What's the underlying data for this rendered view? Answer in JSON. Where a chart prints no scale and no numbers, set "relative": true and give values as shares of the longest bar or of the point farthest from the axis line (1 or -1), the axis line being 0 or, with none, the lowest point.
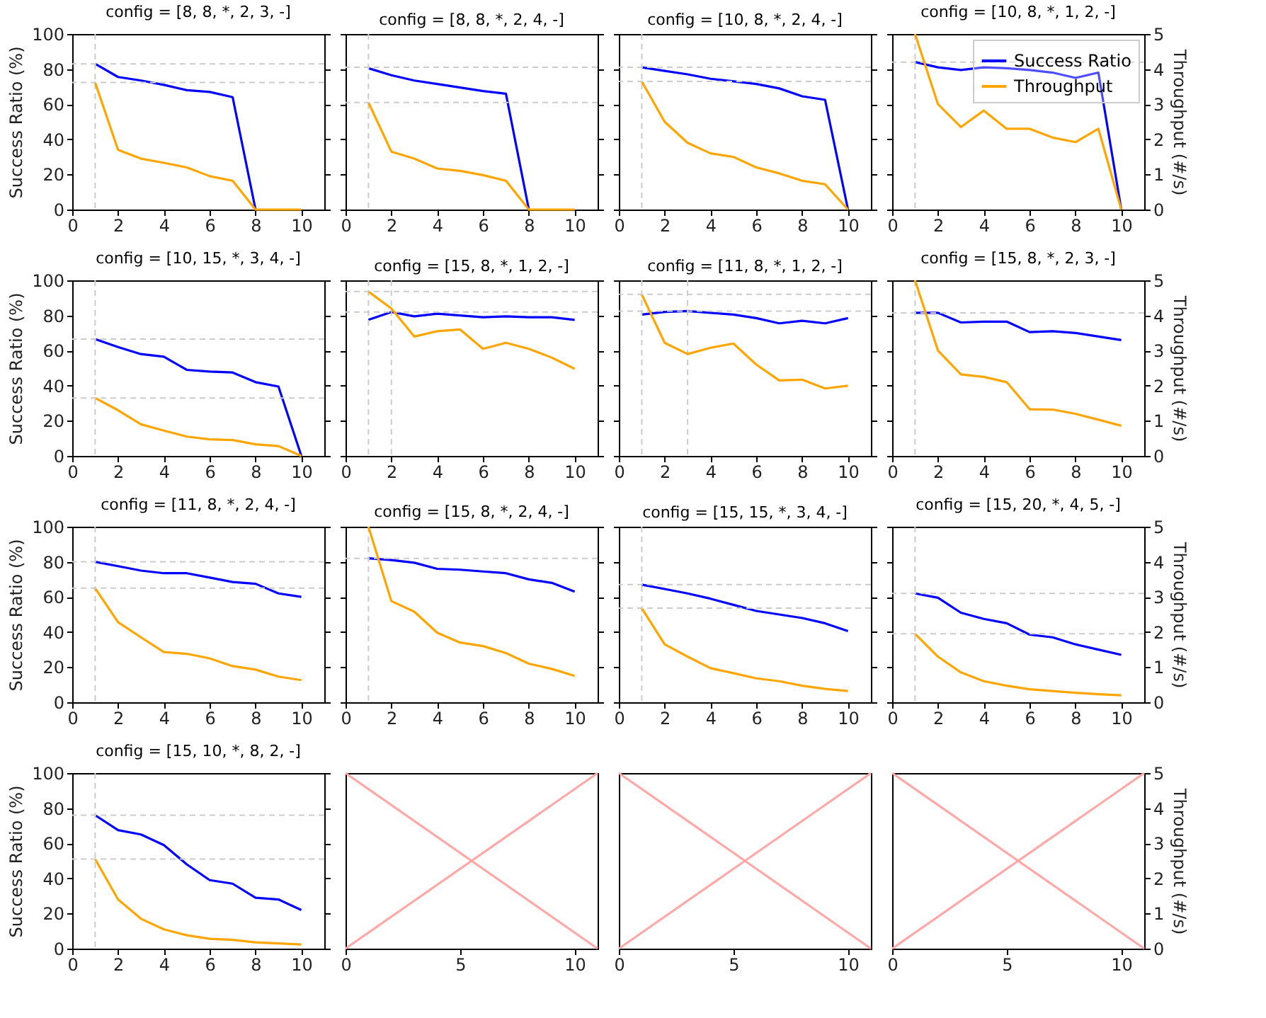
{
  "chart_data": [
    {
      "type": "line",
      "title": "config = [8, 8, *, 2, 3, -]",
      "ylabel": "Success Ratio (%)",
      "x": [
        1,
        2,
        3,
        4,
        5,
        6,
        7,
        8,
        9,
        10
      ],
      "xlim": [
        0,
        11
      ],
      "xticks": [
        0,
        2,
        4,
        6,
        8,
        10
      ],
      "ylim": [
        0,
        100
      ],
      "yticks": [
        0,
        20,
        40,
        60,
        80,
        100
      ],
      "y2lim": [
        0,
        5
      ],
      "series": [
        {
          "color": "#0000ff",
          "values": [
            83,
            75.5,
            73.5,
            71,
            68,
            67,
            64,
            0,
            null,
            null
          ]
        },
        {
          "color": "#ffa500",
          "axis": "y2",
          "values": [
            3.62,
            1.7,
            1.45,
            1.33,
            1.2,
            0.95,
            0.82,
            0,
            0,
            0
          ]
        }
      ],
      "ref_lines": [
        {
          "axis": "x",
          "value": 1,
          "color": "#cccccc",
          "line_style": "dashed"
        },
        {
          "axis": "y",
          "value": 83,
          "color": "#cccccc",
          "line_style": "dashed"
        },
        {
          "axis": "y2",
          "value": 3.62,
          "color": "#cccccc",
          "line_style": "dashed"
        }
      ]
    },
    {
      "type": "line",
      "title": "config = [8, 8, *, 2, 4, -]",
      "x": [
        1,
        2,
        3,
        4,
        5,
        6,
        7,
        8,
        9,
        10
      ],
      "xlim": [
        0,
        11
      ],
      "xticks": [
        0,
        2,
        4,
        6,
        8,
        10
      ],
      "ylim": [
        0,
        100
      ],
      "yticks": [
        0,
        20,
        40,
        60,
        80,
        100
      ],
      "y2lim": [
        0,
        5
      ],
      "y2ticks": [
        0,
        1,
        2,
        3,
        4,
        5
      ],
      "tick_labels": "x",
      "series": [
        {
          "color": "#0000ff",
          "values": [
            80.5,
            76.5,
            73.5,
            71.5,
            69.5,
            67.5,
            66,
            0,
            null,
            null
          ]
        },
        {
          "color": "#ffa500",
          "axis": "y2",
          "values": [
            3.05,
            1.65,
            1.45,
            1.17,
            1.1,
            0.98,
            0.82,
            0,
            0,
            0
          ]
        }
      ],
      "ref_lines": [
        {
          "axis": "x",
          "value": 1,
          "color": "#cccccc",
          "line_style": "dashed"
        },
        {
          "axis": "y",
          "value": 81,
          "color": "#cccccc",
          "line_style": "dashed"
        },
        {
          "axis": "y2",
          "value": 3.05,
          "color": "#cccccc",
          "line_style": "dashed"
        }
      ]
    },
    {
      "type": "line",
      "title": "config = [10, 8, *, 2, 4, -]",
      "x": [
        1,
        2,
        3,
        4,
        5,
        6,
        7,
        8,
        9,
        10
      ],
      "xlim": [
        0,
        11
      ],
      "xticks": [
        0,
        2,
        4,
        6,
        8,
        10
      ],
      "ylim": [
        0,
        100
      ],
      "yticks": [
        0,
        20,
        40,
        60,
        80,
        100
      ],
      "y2lim": [
        0,
        5
      ],
      "y2ticks": [
        0,
        1,
        2,
        3,
        4,
        5
      ],
      "tick_labels": "x",
      "series": [
        {
          "color": "#0000ff",
          "values": [
            81,
            79,
            77,
            74.5,
            73,
            71.5,
            69,
            64.5,
            62.5,
            0
          ]
        },
        {
          "color": "#ffa500",
          "axis": "y2",
          "values": [
            3.65,
            2.5,
            1.9,
            1.6,
            1.5,
            1.2,
            1.03,
            0.82,
            0.72,
            0
          ]
        }
      ],
      "ref_lines": [
        {
          "axis": "x",
          "value": 1,
          "color": "#cccccc",
          "line_style": "dashed"
        },
        {
          "axis": "y",
          "value": 81,
          "color": "#cccccc",
          "line_style": "dashed"
        },
        {
          "axis": "y2",
          "value": 3.65,
          "color": "#cccccc",
          "line_style": "dashed"
        }
      ]
    },
    {
      "type": "line",
      "title": "config = [10, 8, *, 1, 2, -]",
      "y2label": "Throughput (#/s)",
      "x": [
        1,
        2,
        3,
        4,
        5,
        6,
        7,
        8,
        9,
        10
      ],
      "xlim": [
        0,
        11
      ],
      "xticks": [
        0,
        2,
        4,
        6,
        8,
        10
      ],
      "ylim": [
        0,
        100
      ],
      "y2lim": [
        0,
        5
      ],
      "y2ticks": [
        0,
        1,
        2,
        3,
        4,
        5
      ],
      "legend": "top right",
      "series": [
        {
          "name": "Success Ratio",
          "color": "#0000ff",
          "values": [
            84,
            81,
            79.5,
            81,
            80.5,
            79.5,
            78,
            75,
            78,
            0
          ]
        },
        {
          "name": "Throughput",
          "color": "#ffa500",
          "axis": "y2",
          "values": [
            5,
            3,
            2.35,
            2.82,
            2.3,
            2.3,
            2.05,
            1.92,
            2.3,
            0
          ]
        }
      ],
      "ref_lines": [
        {
          "axis": "x",
          "value": 1,
          "color": "#cccccc",
          "line_style": "dashed"
        },
        {
          "axis": "y",
          "value": 84,
          "color": "#cccccc",
          "line_style": "dashed"
        }
      ]
    },
    {
      "type": "line",
      "title": "config = [10, 15, *, 3, 4, -]",
      "ylabel": "Success Ratio (%)",
      "x": [
        1,
        2,
        3,
        4,
        5,
        6,
        7,
        8,
        9,
        10
      ],
      "xlim": [
        0,
        11
      ],
      "xticks": [
        0,
        2,
        4,
        6,
        8,
        10
      ],
      "ylim": [
        0,
        100
      ],
      "yticks": [
        0,
        20,
        40,
        60,
        80,
        100
      ],
      "y2lim": [
        0,
        5
      ],
      "series": [
        {
          "color": "#0000ff",
          "values": [
            66.5,
            62,
            58,
            56.5,
            49,
            48,
            47.5,
            42,
            39.5,
            0
          ]
        },
        {
          "color": "#ffa500",
          "axis": "y2",
          "values": [
            1.65,
            1.3,
            0.9,
            0.72,
            0.55,
            0.47,
            0.45,
            0.33,
            0.28,
            0
          ]
        }
      ],
      "ref_lines": [
        {
          "axis": "x",
          "value": 1,
          "color": "#cccccc",
          "line_style": "dashed"
        },
        {
          "axis": "y",
          "value": 66.5,
          "color": "#cccccc",
          "line_style": "dashed"
        },
        {
          "axis": "y2",
          "value": 1.65,
          "color": "#cccccc",
          "line_style": "dashed"
        }
      ]
    },
    {
      "type": "line",
      "title": "config = [15, 8, *, 1, 2, -]",
      "x": [
        1,
        2,
        3,
        4,
        5,
        6,
        7,
        8,
        9,
        10
      ],
      "xlim": [
        0,
        11
      ],
      "xticks": [
        0,
        2,
        4,
        6,
        8,
        10
      ],
      "ylim": [
        0,
        100
      ],
      "yticks": [
        0,
        20,
        40,
        60,
        80,
        100
      ],
      "y2lim": [
        0,
        5
      ],
      "y2ticks": [
        0,
        1,
        2,
        3,
        4,
        5
      ],
      "tick_labels": "x",
      "series": [
        {
          "color": "#0000ff",
          "values": [
            77.5,
            82,
            79.5,
            81,
            80,
            79,
            79.5,
            79,
            79,
            77.5
          ]
        },
        {
          "color": "#ffa500",
          "axis": "y2",
          "values": [
            4.68,
            4.2,
            3.4,
            3.55,
            3.6,
            3.05,
            3.22,
            3.05,
            2.8,
            2.48
          ]
        }
      ],
      "ref_lines": [
        {
          "axis": "x",
          "value": 1,
          "color": "#cccccc",
          "line_style": "dashed"
        },
        {
          "axis": "x",
          "value": 2,
          "color": "#cccccc",
          "line_style": "dashed"
        },
        {
          "axis": "y",
          "value": 82,
          "color": "#cccccc",
          "line_style": "dashed"
        },
        {
          "axis": "y2",
          "value": 4.68,
          "color": "#cccccc",
          "line_style": "dashed"
        }
      ]
    },
    {
      "type": "line",
      "title": "config = [11, 8, *, 1, 2, -]",
      "x": [
        1,
        2,
        3,
        4,
        5,
        6,
        7,
        8,
        9,
        10
      ],
      "xlim": [
        0,
        11
      ],
      "xticks": [
        0,
        2,
        4,
        6,
        8,
        10
      ],
      "ylim": [
        0,
        100
      ],
      "yticks": [
        0,
        20,
        40,
        60,
        80,
        100
      ],
      "y2lim": [
        0,
        5
      ],
      "y2ticks": [
        0,
        1,
        2,
        3,
        4,
        5
      ],
      "tick_labels": "x",
      "series": [
        {
          "color": "#0000ff",
          "values": [
            80.5,
            82,
            82.5,
            81.5,
            80.5,
            78.5,
            75.5,
            77,
            75.5,
            78.5
          ]
        },
        {
          "color": "#ffa500",
          "axis": "y2",
          "values": [
            4.6,
            3.22,
            2.9,
            3.08,
            3.2,
            2.6,
            2.15,
            2.17,
            1.92,
            2
          ]
        }
      ],
      "ref_lines": [
        {
          "axis": "x",
          "value": 1,
          "color": "#cccccc",
          "line_style": "dashed"
        },
        {
          "axis": "x",
          "value": 3,
          "color": "#cccccc",
          "line_style": "dashed"
        },
        {
          "axis": "y",
          "value": 82.5,
          "color": "#cccccc",
          "line_style": "dashed"
        },
        {
          "axis": "y2",
          "value": 4.6,
          "color": "#cccccc",
          "line_style": "dashed"
        }
      ]
    },
    {
      "type": "line",
      "title": "config = [15, 8, *, 2, 3, -]",
      "y2label": "Throughput (#/s)",
      "x": [
        1,
        2,
        3,
        4,
        5,
        6,
        7,
        8,
        9,
        10
      ],
      "xlim": [
        0,
        11
      ],
      "xticks": [
        0,
        2,
        4,
        6,
        8,
        10
      ],
      "ylim": [
        0,
        100
      ],
      "y2lim": [
        0,
        5
      ],
      "y2ticks": [
        0,
        1,
        2,
        3,
        4,
        5
      ],
      "series": [
        {
          "color": "#0000ff",
          "values": [
            81.5,
            81.5,
            76,
            76.5,
            76.5,
            70.5,
            71,
            70,
            68,
            66
          ]
        },
        {
          "color": "#ffa500",
          "axis": "y2",
          "values": [
            5,
            3,
            2.32,
            2.25,
            2.1,
            1.33,
            1.32,
            1.2,
            1.03,
            0.86
          ]
        }
      ],
      "ref_lines": [
        {
          "axis": "x",
          "value": 1,
          "color": "#cccccc",
          "line_style": "dashed"
        },
        {
          "axis": "y",
          "value": 81.5,
          "color": "#cccccc",
          "line_style": "dashed"
        }
      ]
    },
    {
      "type": "line",
      "title": "config = [11, 8, *, 2, 4, -]",
      "ylabel": "Success Ratio (%)",
      "x": [
        1,
        2,
        3,
        4,
        5,
        6,
        7,
        8,
        9,
        10
      ],
      "xlim": [
        0,
        11
      ],
      "xticks": [
        0,
        2,
        4,
        6,
        8,
        10
      ],
      "ylim": [
        0,
        100
      ],
      "yticks": [
        0,
        20,
        40,
        60,
        80,
        100
      ],
      "y2lim": [
        0,
        5
      ],
      "series": [
        {
          "color": "#0000ff",
          "values": [
            80,
            77.5,
            75,
            73.5,
            73.5,
            71,
            68.5,
            67.5,
            62,
            60
          ]
        },
        {
          "color": "#ffa500",
          "axis": "y2",
          "values": [
            3.25,
            2.28,
            1.85,
            1.43,
            1.38,
            1.25,
            1.03,
            0.93,
            0.73,
            0.63
          ]
        }
      ],
      "ref_lines": [
        {
          "axis": "x",
          "value": 1,
          "color": "#cccccc",
          "line_style": "dashed"
        },
        {
          "axis": "y",
          "value": 80,
          "color": "#cccccc",
          "line_style": "dashed"
        },
        {
          "axis": "y2",
          "value": 3.25,
          "color": "#cccccc",
          "line_style": "dashed"
        }
      ]
    },
    {
      "type": "line",
      "title": "config = [15, 8, *, 2, 4, -]",
      "x": [
        1,
        2,
        3,
        4,
        5,
        6,
        7,
        8,
        9,
        10
      ],
      "xlim": [
        0,
        11
      ],
      "xticks": [
        0,
        2,
        4,
        6,
        8,
        10
      ],
      "ylim": [
        0,
        100
      ],
      "yticks": [
        0,
        20,
        40,
        60,
        80,
        100
      ],
      "y2lim": [
        0,
        5
      ],
      "y2ticks": [
        0,
        1,
        2,
        3,
        4,
        5
      ],
      "tick_labels": "x",
      "series": [
        {
          "color": "#0000ff",
          "values": [
            82,
            81,
            79.5,
            76,
            75.5,
            74.5,
            73.5,
            70,
            68,
            63
          ]
        },
        {
          "color": "#ffa500",
          "axis": "y2",
          "values": [
            5,
            2.88,
            2.58,
            1.98,
            1.7,
            1.6,
            1.4,
            1.1,
            0.95,
            0.75
          ]
        }
      ],
      "ref_lines": [
        {
          "axis": "x",
          "value": 1,
          "color": "#cccccc",
          "line_style": "dashed"
        },
        {
          "axis": "y",
          "value": 82,
          "color": "#cccccc",
          "line_style": "dashed"
        }
      ]
    },
    {
      "type": "line",
      "title": "config = [15, 15, *, 3, 4, -]",
      "x": [
        1,
        2,
        3,
        4,
        5,
        6,
        7,
        8,
        9,
        10
      ],
      "xlim": [
        0,
        11
      ],
      "xticks": [
        0,
        2,
        4,
        6,
        8,
        10
      ],
      "ylim": [
        0,
        100
      ],
      "yticks": [
        0,
        20,
        40,
        60,
        80,
        100
      ],
      "y2lim": [
        0,
        5
      ],
      "y2ticks": [
        0,
        1,
        2,
        3,
        4,
        5
      ],
      "tick_labels": "x",
      "series": [
        {
          "color": "#0000ff",
          "values": [
            67,
            64.5,
            62,
            59,
            55.5,
            52,
            50,
            48,
            45,
            40.5
          ]
        },
        {
          "color": "#ffa500",
          "axis": "y2",
          "values": [
            2.68,
            1.65,
            1.3,
            0.97,
            0.83,
            0.68,
            0.6,
            0.47,
            0.38,
            0.32
          ]
        }
      ],
      "ref_lines": [
        {
          "axis": "x",
          "value": 1,
          "color": "#cccccc",
          "line_style": "dashed"
        },
        {
          "axis": "y",
          "value": 67,
          "color": "#cccccc",
          "line_style": "dashed"
        },
        {
          "axis": "y2",
          "value": 2.68,
          "color": "#cccccc",
          "line_style": "dashed"
        }
      ]
    },
    {
      "type": "line",
      "title": "config = [15, 20, *, 4, 5, -]",
      "y2label": "Throughput (#/s)",
      "x": [
        1,
        2,
        3,
        4,
        5,
        6,
        7,
        8,
        9,
        10
      ],
      "xlim": [
        0,
        11
      ],
      "xticks": [
        0,
        2,
        4,
        6,
        8,
        10
      ],
      "ylim": [
        0,
        100
      ],
      "y2lim": [
        0,
        5
      ],
      "y2ticks": [
        0,
        1,
        2,
        3,
        4,
        5
      ],
      "series": [
        {
          "color": "#0000ff",
          "values": [
            62,
            59.5,
            51,
            47.5,
            45,
            38.5,
            37,
            33,
            30,
            27
          ]
        },
        {
          "color": "#ffa500",
          "axis": "y2",
          "values": [
            1.95,
            1.3,
            0.85,
            0.6,
            0.47,
            0.37,
            0.32,
            0.27,
            0.23,
            0.2
          ]
        }
      ],
      "ref_lines": [
        {
          "axis": "x",
          "value": 1,
          "color": "#cccccc",
          "line_style": "dashed"
        },
        {
          "axis": "y",
          "value": 62,
          "color": "#cccccc",
          "line_style": "dashed"
        },
        {
          "axis": "y2",
          "value": 1.95,
          "color": "#cccccc",
          "line_style": "dashed"
        }
      ]
    },
    {
      "type": "line",
      "title": "config = [15, 10, *, 8, 2, -]",
      "ylabel": "Success Ratio (%)",
      "x": [
        1,
        2,
        3,
        4,
        5,
        6,
        7,
        8,
        9,
        10
      ],
      "xlim": [
        0,
        11
      ],
      "xticks": [
        0,
        2,
        4,
        6,
        8,
        10
      ],
      "ylim": [
        0,
        100
      ],
      "yticks": [
        0,
        20,
        40,
        60,
        80,
        100
      ],
      "y2lim": [
        0,
        5
      ],
      "series": [
        {
          "color": "#0000ff",
          "values": [
            76,
            67.5,
            65,
            59,
            48,
            39,
            37,
            29,
            28,
            22
          ]
        },
        {
          "color": "#ffa500",
          "axis": "y2",
          "values": [
            2.55,
            1.4,
            0.85,
            0.55,
            0.38,
            0.28,
            0.25,
            0.18,
            0.15,
            0.12
          ]
        }
      ],
      "ref_lines": [
        {
          "axis": "x",
          "value": 1,
          "color": "#cccccc",
          "line_style": "dashed"
        },
        {
          "axis": "y",
          "value": 76,
          "color": "#cccccc",
          "line_style": "dashed"
        },
        {
          "axis": "y2",
          "value": 2.55,
          "color": "#cccccc",
          "line_style": "dashed"
        }
      ]
    },
    {
      "type": "line",
      "relative": true,
      "x": [
        0,
        11
      ],
      "xlim": [
        0,
        11
      ],
      "xticks": [
        0,
        5,
        10
      ],
      "tick_labels": "x",
      "series": [
        {
          "color": "#ffa8a8",
          "values": [
            0,
            1
          ]
        },
        {
          "color": "#ffa8a8",
          "values": [
            1,
            0
          ]
        }
      ]
    },
    {
      "type": "line",
      "relative": true,
      "x": [
        0,
        11
      ],
      "xlim": [
        0,
        11
      ],
      "xticks": [
        0,
        5,
        10
      ],
      "tick_labels": "x",
      "series": [
        {
          "color": "#ffa8a8",
          "values": [
            1,
            0
          ]
        },
        {
          "color": "#ffa8a8",
          "values": [
            0,
            1
          ]
        }
      ]
    },
    {
      "type": "line",
      "y2label": "Throughput (#/s)",
      "x": [
        0,
        11
      ],
      "xlim": [
        0,
        11
      ],
      "xticks": [
        0,
        5,
        10
      ],
      "y2lim": [
        0,
        5
      ],
      "y2ticks": [
        0,
        1,
        2,
        3,
        4,
        5
      ],
      "series": [
        {
          "color": "#ffa8a8",
          "axis": "y2",
          "values": [
            5,
            0
          ]
        },
        {
          "color": "#ffa8a8",
          "axis": "y2",
          "values": [
            0,
            5
          ]
        }
      ]
    }
  ]
}
